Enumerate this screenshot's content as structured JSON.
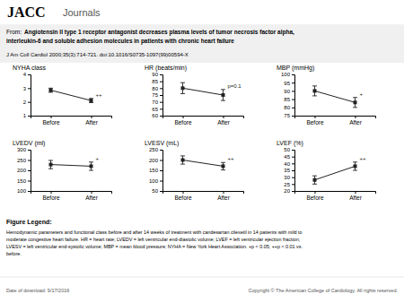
{
  "header": {
    "title": "JACC",
    "subtitle": "Journals"
  },
  "citation": {
    "prefix": "From:",
    "title_lines": [
      "Angiotensin II type 1 receptor antagonist decreases plasma levels of tumor necrosis factor alpha,",
      "interleukin-6 and soluble adhesion molecules in patients with chronic heart failure"
    ],
    "reference": "J Am Coll Cardiol 2000;35(3):714-721. doi:10.1016/S0735-1097(99)00594-X"
  },
  "figure_legend": {
    "title": "Figure Legend:",
    "lines": [
      "Hemodynamic parameters and functional class before and after 14 weeks of treatment with candesartan cilexetil in 14 patients with mild to",
      "moderate congestive heart failure. HR = heart rate; LVEDV = left ventricular end-diastolic volume; LVEF = left ventricular ejection fraction;",
      "LVESV = left ventricular end-systolic volume; MBP = mean blood pressure; NYHA = New York Heart Association. +p < 0.05; ++p < 0.01 vs.",
      "before."
    ]
  },
  "footer": {
    "left": "Date of download: 9/17/2016",
    "right": "Copyright © The American College of Cardiology. All rights reserved."
  },
  "chart_data": [
    {
      "type": "line",
      "title": "NYHA class",
      "categories": [
        "Before",
        "After"
      ],
      "values": [
        2.85,
        2.1
      ],
      "errors": [
        0.15,
        0.15
      ],
      "color": "#222222",
      "marker": "square",
      "annotation": "++",
      "ylim": [
        1,
        4
      ],
      "yticks": [
        1,
        2,
        3,
        4
      ]
    },
    {
      "type": "line",
      "title": "HR (beats/min)",
      "categories": [
        "Before",
        "After"
      ],
      "values": [
        80,
        75
      ],
      "errors": [
        4,
        4
      ],
      "color": "#222222",
      "marker": "square",
      "annotation": "p=0.1",
      "ylim": [
        60,
        90
      ],
      "yticks": [
        60,
        65,
        70,
        75,
        80,
        85,
        90
      ]
    },
    {
      "type": "line",
      "title": "MBP (mmHg)",
      "categories": [
        "Before",
        "After"
      ],
      "values": [
        90,
        83
      ],
      "errors": [
        3,
        3
      ],
      "color": "#222222",
      "marker": "square",
      "annotation": "+",
      "ylim": [
        75,
        100
      ],
      "yticks": [
        75,
        80,
        85,
        90,
        95,
        100
      ]
    },
    {
      "type": "line",
      "title": "LVEDV (ml)",
      "categories": [
        "Before",
        "After"
      ],
      "values": [
        228,
        220
      ],
      "errors": [
        20,
        20
      ],
      "color": "#222222",
      "marker": "square",
      "annotation": "+",
      "ylim": [
        100,
        300
      ],
      "yticks": [
        100,
        150,
        200,
        250,
        300
      ]
    },
    {
      "type": "line",
      "title": "LVESV (mL)",
      "categories": [
        "Before",
        "After"
      ],
      "values": [
        200,
        170
      ],
      "errors": [
        20,
        18
      ],
      "color": "#222222",
      "marker": "square",
      "annotation": "++",
      "ylim": [
        50,
        250
      ],
      "yticks": [
        50,
        100,
        150,
        200,
        250
      ]
    },
    {
      "type": "line",
      "title": "LVEF (%)",
      "categories": [
        "Before",
        "After"
      ],
      "values": [
        28,
        38
      ],
      "errors": [
        3,
        3
      ],
      "color": "#222222",
      "marker": "square",
      "annotation": "++",
      "ylim": [
        20,
        50
      ],
      "yticks": [
        20,
        25,
        30,
        35,
        40,
        45,
        50
      ]
    }
  ]
}
